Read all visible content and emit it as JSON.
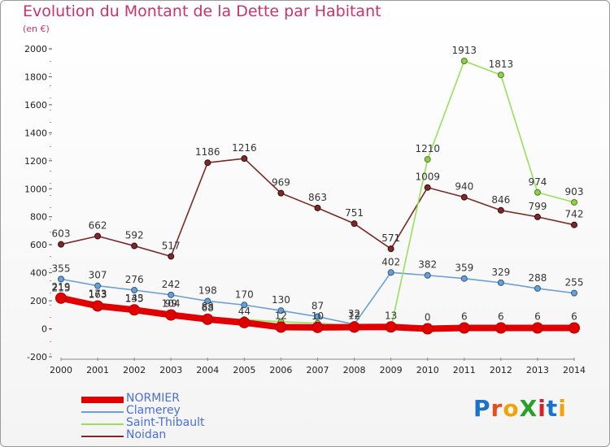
{
  "title": "Evolution du Montant de la Dette par Habitant",
  "subtitle": "(en €)",
  "logo": {
    "text": "ProXiti",
    "colors": [
      "#1a73c9",
      "#e84d1c",
      "#f0a30a",
      "#2aa02a",
      "#d6202a",
      "#1a73c9",
      "#f0a30a"
    ]
  },
  "chart_data": {
    "type": "line",
    "title": "Evolution du Montant de la Dette par Habitant",
    "subtitle": "(en €)",
    "x": [
      "2000",
      "2001",
      "2002",
      "2003",
      "2004",
      "2005",
      "2006",
      "2007",
      "2008",
      "2009",
      "2010",
      "2011",
      "2012",
      "2013",
      "2014"
    ],
    "ylim": [
      -200,
      2000
    ],
    "yticks": [
      -200,
      0,
      200,
      400,
      600,
      800,
      1000,
      1200,
      1400,
      1600,
      1800,
      2000
    ],
    "grid": false,
    "legend_position": "bottom-left",
    "series": [
      {
        "name": "NORMIER",
        "color": "#e00000",
        "values": [
          219,
          163,
          135,
          99,
          68,
          44,
          12,
          10,
          12,
          13,
          0,
          6,
          6,
          6,
          6
        ],
        "labels": [
          "219",
          "163",
          "135",
          "99",
          "68",
          "44",
          "12",
          "10",
          "12",
          "13",
          "0",
          "6",
          "6",
          "6",
          "6"
        ]
      },
      {
        "name": "Clamerey",
        "color": "#6a9fd0",
        "values": [
          355,
          307,
          276,
          242,
          198,
          170,
          130,
          87,
          32,
          402,
          382,
          359,
          329,
          288,
          255
        ],
        "labels": [
          "355",
          "307",
          "276",
          "242",
          "198",
          "170",
          "130",
          "87",
          "32",
          "402",
          "382",
          "359",
          "329",
          "288",
          "255"
        ]
      },
      {
        "name": "Saint-Thibault",
        "color": "#99e05a",
        "values": [
          215,
          173,
          143,
          104,
          83,
          66,
          50,
          40,
          22,
          5,
          1210,
          1913,
          1813,
          974,
          903
        ],
        "labels": [
          "215",
          "173",
          "143",
          "104",
          "83",
          "",
          "",
          "",
          "",
          "",
          "1210",
          "1913",
          "1813",
          "974",
          "903"
        ]
      },
      {
        "name": "Noidan",
        "color": "#7a2a2a",
        "values": [
          603,
          662,
          592,
          517,
          1186,
          1216,
          969,
          863,
          751,
          571,
          1009,
          940,
          846,
          799,
          742
        ],
        "labels": [
          "603",
          "662",
          "592",
          "517",
          "1186",
          "1216",
          "969",
          "863",
          "751",
          "571",
          "1009",
          "940",
          "846",
          "799",
          "742"
        ]
      }
    ]
  }
}
